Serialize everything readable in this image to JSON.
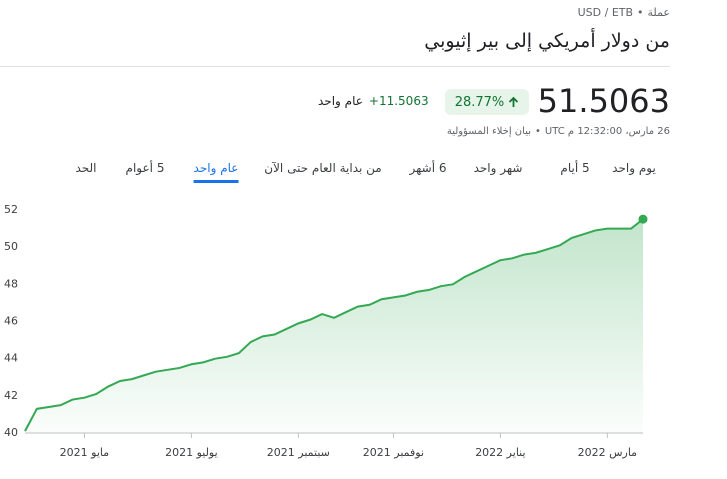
{
  "header": {
    "pair": "USD / ETB",
    "kind": "عملة",
    "title": "من دولار أمريكي إلى بير إثيوبي"
  },
  "quote": {
    "price": "51.5063",
    "change_pct": "28.77%",
    "change_abs": "+11.5063",
    "period": "عام واحد",
    "timestamp": "26 مارس، 12:32:00 م UTC",
    "disclaimer": "بيان إخلاء المسؤولية"
  },
  "tabs": {
    "items": [
      "يوم واحد",
      "5 أيام",
      "شهر واحد",
      "6 أشهر",
      "من بداية العام حتى الآن",
      "عام واحد",
      "5 أعوام",
      "الحد"
    ],
    "selected": 5
  },
  "chart_data": {
    "type": "line",
    "categories": [
      null,
      null,
      null,
      null,
      null,
      "مايو 2021",
      null,
      null,
      null,
      null,
      null,
      null,
      null,
      null,
      "يوليو 2021",
      null,
      null,
      null,
      null,
      null,
      null,
      null,
      null,
      "سبتمبر 2021",
      null,
      null,
      null,
      null,
      null,
      null,
      null,
      "نوفمبر 2021",
      null,
      null,
      null,
      null,
      null,
      null,
      null,
      null,
      "يناير 2022",
      null,
      null,
      null,
      null,
      null,
      null,
      null,
      null,
      "مارس 2022",
      null,
      null,
      null
    ],
    "series": [
      {
        "name": "USD / ETB",
        "color": "#34a853",
        "values": [
          40.1,
          41.3,
          41.4,
          41.5,
          41.8,
          41.9,
          42.1,
          42.5,
          42.8,
          42.9,
          43.1,
          43.3,
          43.4,
          43.5,
          43.7,
          43.8,
          44.0,
          44.1,
          44.3,
          44.9,
          45.2,
          45.3,
          45.6,
          45.9,
          46.1,
          46.4,
          46.2,
          46.5,
          46.8,
          46.9,
          47.2,
          47.3,
          47.4,
          47.6,
          47.7,
          47.9,
          48.0,
          48.4,
          48.7,
          49.0,
          49.3,
          49.4,
          49.6,
          49.7,
          49.9,
          50.1,
          50.5,
          50.7,
          50.9,
          51.0,
          51.0,
          51.0,
          51.5063
        ]
      }
    ],
    "ylim": [
      40,
      52
    ],
    "yticks": [
      40,
      42,
      44,
      46,
      48,
      50,
      52
    ],
    "grid": false
  }
}
